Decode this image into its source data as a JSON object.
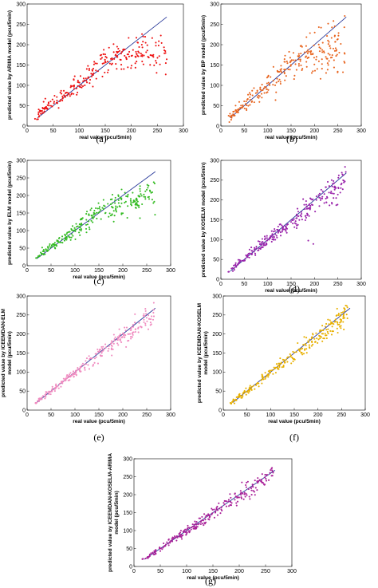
{
  "chart_data": [
    {
      "type": "scatter",
      "panel_label": "(a)",
      "color": "#ee1111",
      "xlabel": "real value  (pcu/5min)",
      "ylabel": "predicted value by ARIMA model  (pcu/5min)",
      "ylabel_lines": [
        "predicted value by ARIMA model  (pcu/5min)"
      ],
      "xlim": [
        0,
        300
      ],
      "ylim": [
        0,
        300
      ],
      "xticks": [
        "0",
        "50",
        "100",
        "150",
        "200",
        "250",
        "300"
      ],
      "yticks": [
        "0",
        "50",
        "100",
        "150",
        "200",
        "250",
        "300"
      ],
      "fit_line": {
        "x": [
          20,
          268
        ],
        "y": [
          20,
          268
        ],
        "color": "#2a3a9a"
      },
      "points": {
        "x_range": [
          15,
          268
        ],
        "shape": "arima",
        "count": 260,
        "seed": 11
      }
    },
    {
      "type": "scatter",
      "panel_label": "(b)",
      "color": "#e8641e",
      "xlabel": "real value  (pcu/5min)",
      "ylabel": "predicted value by BP model  (pcu/5min)",
      "ylabel_lines": [
        "predicted value by BP model  (pcu/5min)"
      ],
      "xlim": [
        0,
        300
      ],
      "ylim": [
        0,
        300
      ],
      "xticks": [
        "0",
        "50",
        "100",
        "150",
        "200",
        "250",
        "300"
      ],
      "yticks": [
        "0",
        "50",
        "100",
        "150",
        "200",
        "250",
        "300"
      ],
      "fit_line": {
        "x": [
          20,
          268
        ],
        "y": [
          20,
          268
        ],
        "color": "#2a3a9a"
      },
      "points": {
        "x_range": [
          15,
          265
        ],
        "shape": "bp",
        "count": 260,
        "seed": 23
      }
    },
    {
      "type": "scatter",
      "panel_label": "(c)",
      "color": "#33bb22",
      "xlabel": "real value  (pcu/5min)",
      "ylabel": "predicted value by ELM model  (pcu/5min)",
      "ylabel_lines": [
        "predicted value by ELM model  (pcu/5min)"
      ],
      "xlim": [
        0,
        300
      ],
      "ylim": [
        0,
        300
      ],
      "xticks": [
        "0",
        "50",
        "100",
        "150",
        "200",
        "250",
        "300"
      ],
      "yticks": [
        "0",
        "50",
        "100",
        "150",
        "200",
        "250",
        "300"
      ],
      "fit_line": {
        "x": [
          20,
          268
        ],
        "y": [
          20,
          268
        ],
        "color": "#2a3a9a"
      },
      "points": {
        "x_range": [
          15,
          268
        ],
        "shape": "elm",
        "count": 260,
        "seed": 37
      }
    },
    {
      "type": "scatter",
      "panel_label": "(d)",
      "color": "#9922aa",
      "xlabel": "real value  (pcu/5min)",
      "ylabel": "predicted value by KOSELM model  (pcu/5min)",
      "ylabel_lines": [
        "predicted value by KOSELM model  (pcu/5min)"
      ],
      "xlim": [
        0,
        300
      ],
      "ylim": [
        0,
        300
      ],
      "xticks": [
        "0",
        "50",
        "100",
        "150",
        "200",
        "250",
        "300"
      ],
      "yticks": [
        "0",
        "50",
        "100",
        "150",
        "200",
        "250",
        "300"
      ],
      "fit_line": {
        "x": [
          20,
          268
        ],
        "y": [
          20,
          268
        ],
        "color": "#2a3a9a"
      },
      "points": {
        "x_range": [
          15,
          268
        ],
        "shape": "koselm",
        "count": 260,
        "seed": 41
      }
    },
    {
      "type": "scatter",
      "panel_label": "(e)",
      "color": "#f08cc0",
      "xlabel": "real value  (pcu/5min)",
      "ylabel": "predicted value by ICEEMDAN-ELM model  (pcu/5min)",
      "ylabel_lines": [
        "predicted value by ICEEMDAN-ELM",
        "model  (pcu/5min)"
      ],
      "xlim": [
        0,
        300
      ],
      "ylim": [
        0,
        300
      ],
      "xticks": [
        "0",
        "50",
        "100",
        "150",
        "200",
        "250",
        "300"
      ],
      "yticks": [
        "0",
        "50",
        "100",
        "150",
        "200",
        "250",
        "300"
      ],
      "fit_line": {
        "x": [
          20,
          268
        ],
        "y": [
          20,
          268
        ],
        "color": "#2a3a9a"
      },
      "points": {
        "x_range": [
          15,
          265
        ],
        "shape": "tight",
        "count": 260,
        "seed": 53
      }
    },
    {
      "type": "scatter",
      "panel_label": "(f)",
      "color": "#e8b000",
      "xlabel": "real value  (pcu/5min)",
      "ylabel": "predicted value by ICEEMDAN-KOSELM model  (pcu/5min)",
      "ylabel_lines": [
        "predicted value by ICEEMDAN-KOSELM",
        "model  (pcu/5min)"
      ],
      "xlim": [
        0,
        300
      ],
      "ylim": [
        0,
        300
      ],
      "xticks": [
        "0",
        "50",
        "100",
        "150",
        "200",
        "250",
        "300"
      ],
      "yticks": [
        "0",
        "50",
        "100",
        "150",
        "200",
        "250",
        "300"
      ],
      "fit_line": {
        "x": [
          20,
          268
        ],
        "y": [
          20,
          268
        ],
        "color": "#2a3a9a"
      },
      "points": {
        "x_range": [
          15,
          265
        ],
        "shape": "tight",
        "count": 260,
        "seed": 67
      }
    },
    {
      "type": "scatter",
      "panel_label": "(g)",
      "color": "#aa2299",
      "xlabel": "real value  (pcu/5min)",
      "ylabel": "predicted value by ICEEMDAN-KOSELM-ARIMA model  (pcu/5min)",
      "ylabel_lines": [
        "predicted value by ICEEMDAN-KOSELM-ARIMA",
        "model  (pcu/5min)"
      ],
      "xlim": [
        0,
        300
      ],
      "ylim": [
        0,
        300
      ],
      "xticks": [
        "0",
        "50",
        "100",
        "150",
        "200",
        "250",
        "300"
      ],
      "yticks": [
        "0",
        "50",
        "100",
        "150",
        "200",
        "250",
        "300"
      ],
      "fit_line": {
        "x": [
          20,
          268
        ],
        "y": [
          20,
          268
        ],
        "color": "#2a3a9a"
      },
      "points": {
        "x_range": [
          15,
          265
        ],
        "shape": "tightest",
        "count": 260,
        "seed": 79
      }
    }
  ]
}
